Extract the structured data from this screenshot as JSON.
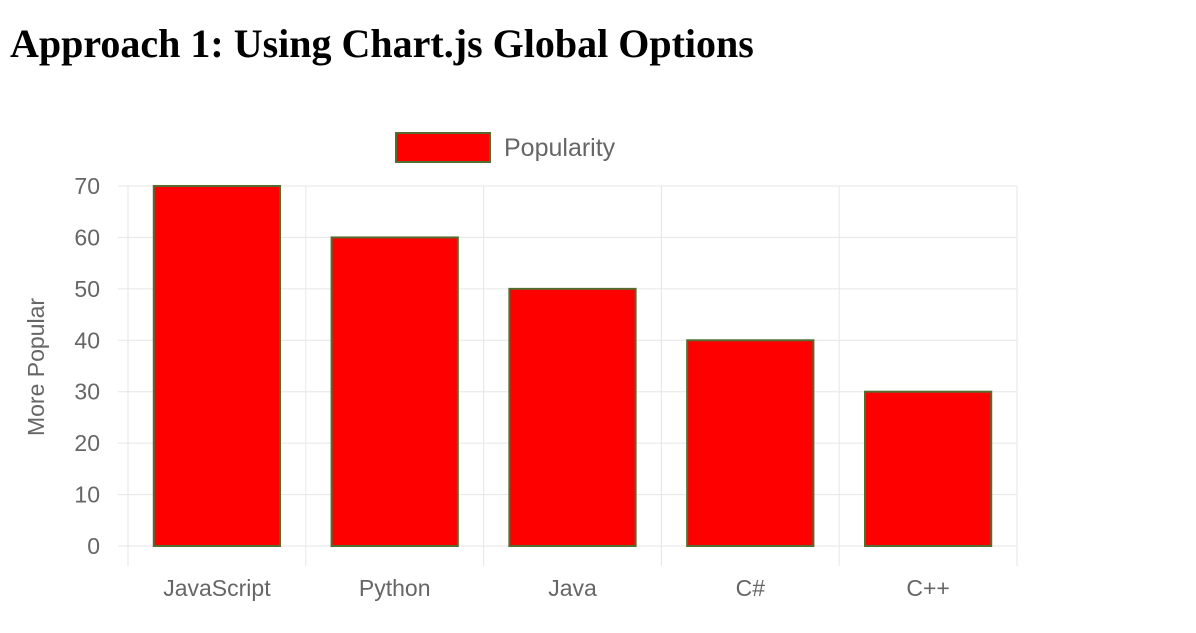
{
  "heading": "Approach 1: Using Chart.js Global Options",
  "chart_data": {
    "type": "bar",
    "categories": [
      "JavaScript",
      "Python",
      "Java",
      "C#",
      "C++"
    ],
    "series": [
      {
        "name": "Popularity",
        "values": [
          70,
          60,
          50,
          40,
          30
        ]
      }
    ],
    "title": "",
    "xlabel": "",
    "ylabel": "More Popular",
    "ylim": [
      0,
      70
    ],
    "yticks": [
      0,
      10,
      20,
      30,
      40,
      50,
      60,
      70
    ],
    "grid": true,
    "legend": "top-center",
    "colors": {
      "bar_fill": "#ff0000",
      "bar_border": "#556b2f",
      "grid": "#e6e6e6",
      "tick_text": "#666666",
      "axis_title": "#666666"
    }
  }
}
